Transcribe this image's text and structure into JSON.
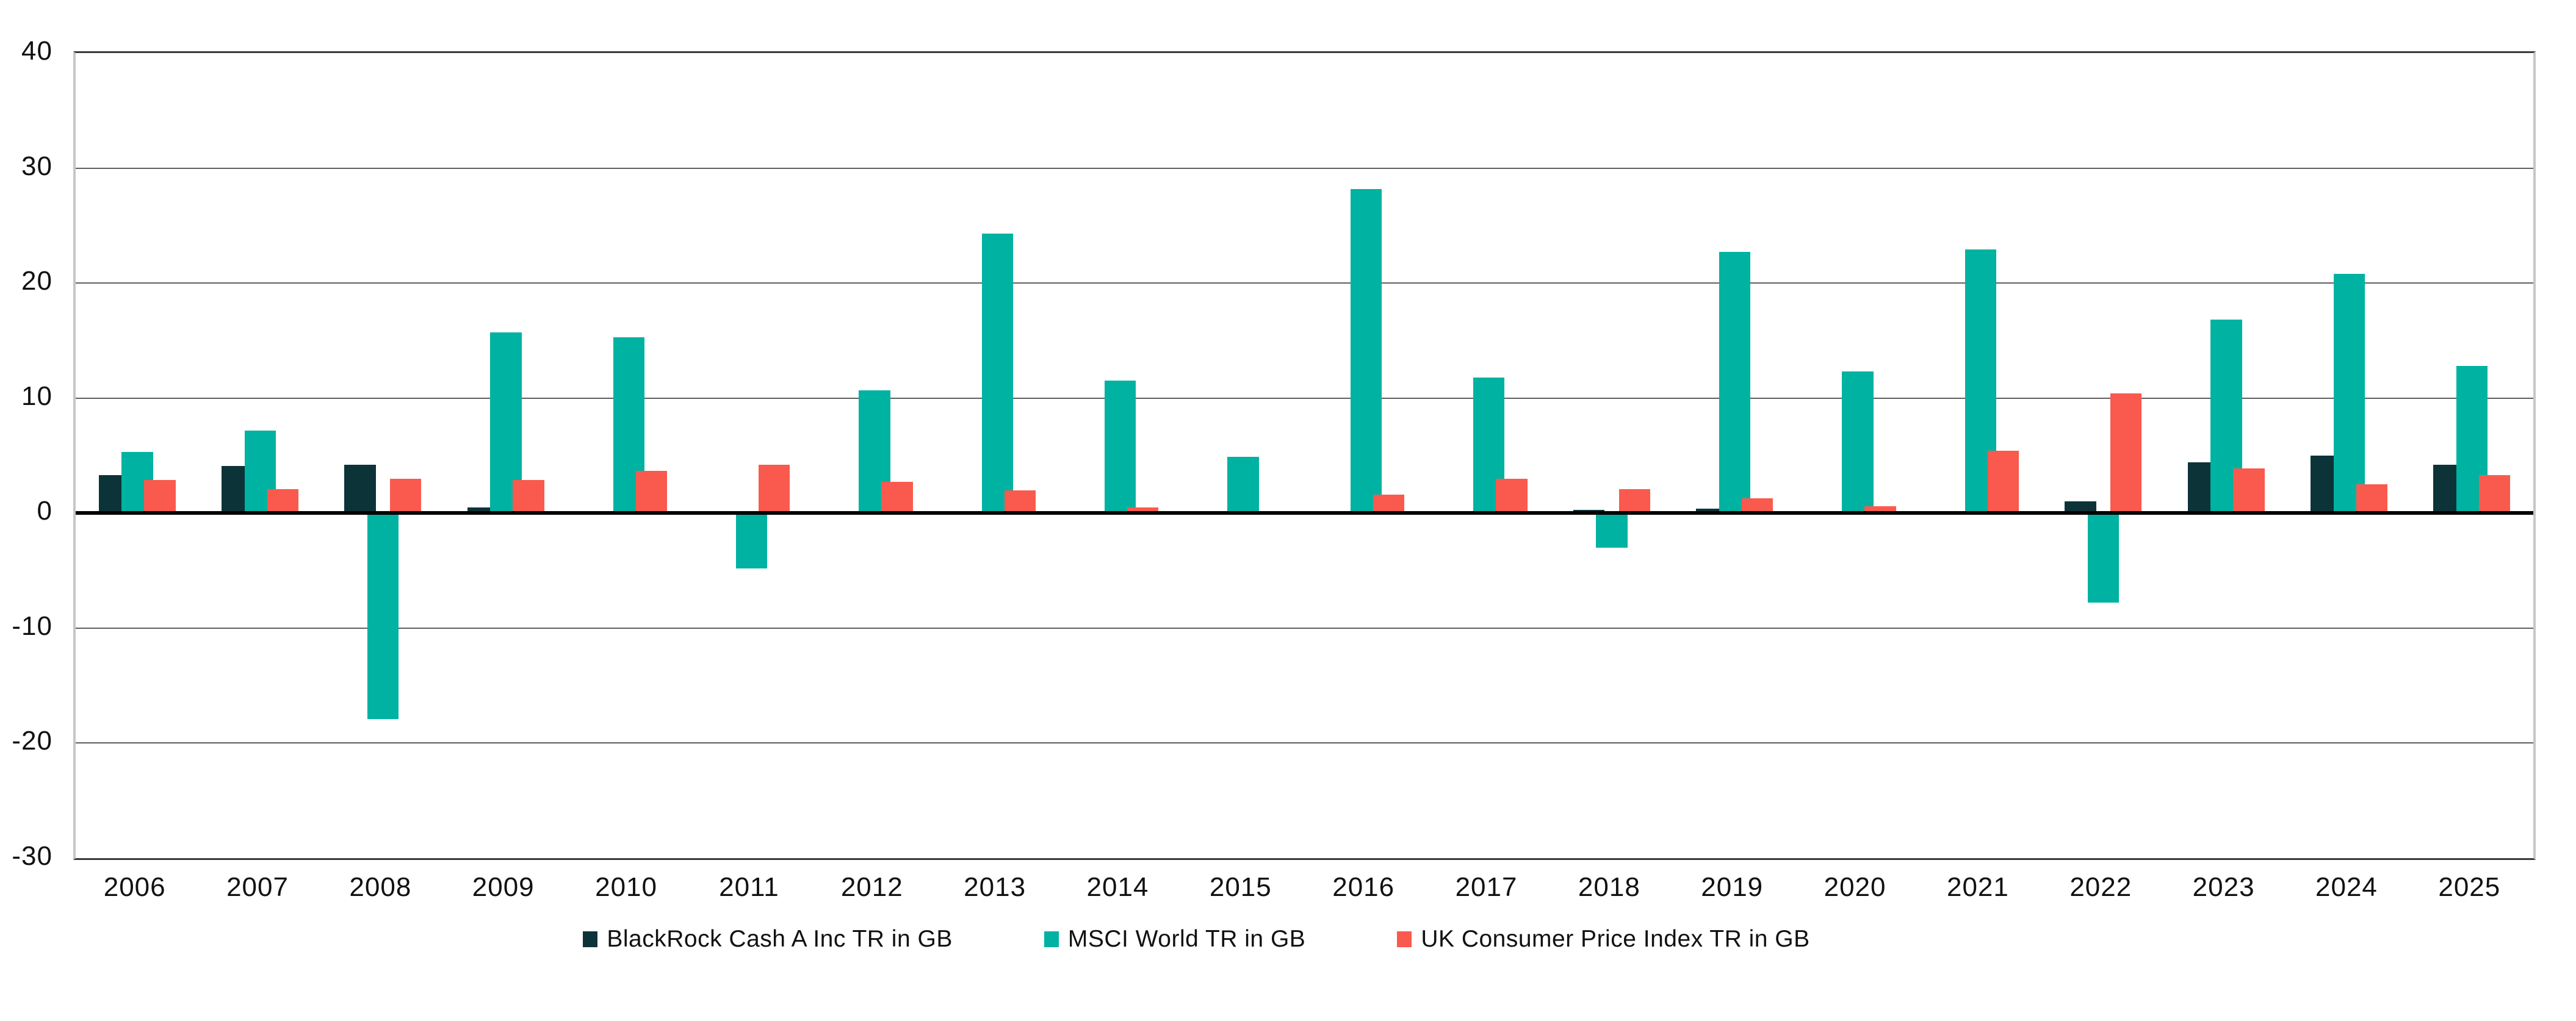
{
  "chart_data": {
    "type": "bar",
    "title": "",
    "categories": [
      "2006",
      "2007",
      "2008",
      "2009",
      "2010",
      "2011",
      "2012",
      "2013",
      "2014",
      "2015",
      "2016",
      "2017",
      "2018",
      "2019",
      "2020",
      "2021",
      "2022",
      "2023",
      "2024",
      "2025"
    ],
    "series": [
      {
        "name": "BlackRock Cash A Inc TR in GB",
        "color": "#0C3438",
        "values": [
          3.3,
          4.1,
          4.2,
          0.5,
          0.2,
          0.2,
          0.2,
          0.1,
          0.1,
          0.1,
          0.1,
          0.1,
          0.3,
          0.4,
          0.1,
          0.1,
          1.0,
          4.4,
          5.0,
          4.2
        ]
      },
      {
        "name": "MSCI World TR in GB",
        "color": "#00B2A1",
        "values": [
          5.3,
          7.2,
          -17.9,
          15.7,
          15.3,
          -4.8,
          10.7,
          24.3,
          11.5,
          4.9,
          28.2,
          11.8,
          -3.0,
          22.7,
          12.3,
          22.9,
          -7.8,
          16.8,
          20.8,
          12.8
        ]
      },
      {
        "name": "UK Consumer Price Index TR in GB",
        "color": "#FA5A4D",
        "values": [
          2.9,
          2.1,
          3.0,
          2.9,
          3.7,
          4.2,
          2.7,
          2.0,
          0.5,
          0.2,
          1.6,
          3.0,
          2.1,
          1.3,
          0.6,
          5.4,
          10.4,
          3.9,
          2.5,
          3.3
        ]
      }
    ],
    "xlabel": "",
    "ylabel": "",
    "ylim": [
      -30,
      40
    ],
    "yticks": [
      40,
      30,
      20,
      10,
      0,
      -10,
      -20,
      -30
    ],
    "grid": true,
    "legend_position": "bottom",
    "axis_colors": {
      "gridline": "#5f5f5f",
      "zero_line": "#000000",
      "side_border": "#c6c6c6",
      "top_bottom_border": "#3a3a3a",
      "tick_text": "#111111"
    }
  }
}
